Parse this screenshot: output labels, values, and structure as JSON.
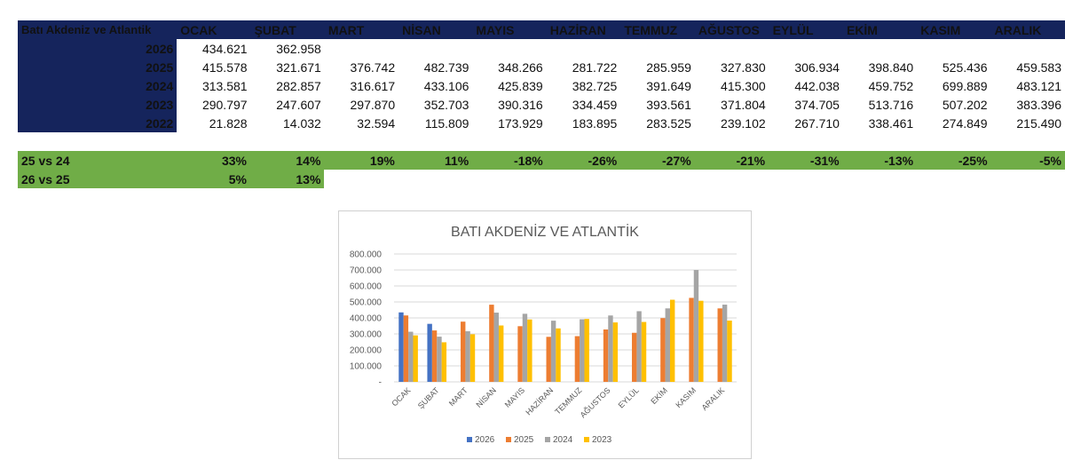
{
  "table": {
    "header_label": "Batı Akdeniz ve Atlantik",
    "months": [
      "OCAK",
      "ŞUBAT",
      "MART",
      "NİSAN",
      "MAYIS",
      "HAZİRAN",
      "TEMMUZ",
      "AĞUSTOS",
      "EYLÜL",
      "EKİM",
      "KASIM",
      "ARALIK"
    ],
    "rows": [
      {
        "year": "2026",
        "values": [
          "434.621",
          "362.958",
          "",
          "",
          "",
          "",
          "",
          "",
          "",
          "",
          "",
          ""
        ]
      },
      {
        "year": "2025",
        "values": [
          "415.578",
          "321.671",
          "376.742",
          "482.739",
          "348.266",
          "281.722",
          "285.959",
          "327.830",
          "306.934",
          "398.840",
          "525.436",
          "459.583"
        ]
      },
      {
        "year": "2024",
        "values": [
          "313.581",
          "282.857",
          "316.617",
          "433.106",
          "425.839",
          "382.725",
          "391.649",
          "415.300",
          "442.038",
          "459.752",
          "699.889",
          "483.121"
        ]
      },
      {
        "year": "2023",
        "values": [
          "290.797",
          "247.607",
          "297.870",
          "352.703",
          "390.316",
          "334.459",
          "393.561",
          "371.804",
          "374.705",
          "513.716",
          "507.202",
          "383.396"
        ]
      },
      {
        "year": "2022",
        "values": [
          "21.828",
          "14.032",
          "32.594",
          "115.809",
          "173.929",
          "183.895",
          "283.525",
          "239.102",
          "267.710",
          "338.461",
          "274.849",
          "215.490"
        ]
      }
    ]
  },
  "comparisons": [
    {
      "label": "25 vs 24",
      "values": [
        "33%",
        "14%",
        "19%",
        "11%",
        "-18%",
        "-26%",
        "-27%",
        "-21%",
        "-31%",
        "-13%",
        "-25%",
        "-5%"
      ]
    },
    {
      "label": "26 vs 25",
      "values": [
        "5%",
        "13%"
      ]
    }
  ],
  "chart_data": {
    "type": "bar",
    "title": "BATI AKDENİZ VE ATLANTİK",
    "categories": [
      "OCAK",
      "ŞUBAT",
      "MART",
      "NİSAN",
      "MAYIS",
      "HAZİRAN",
      "TEMMUZ",
      "AĞUSTOS",
      "EYLÜL",
      "EKİM",
      "KASIM",
      "ARALIK"
    ],
    "series": [
      {
        "name": "2026",
        "color": "#4472c4",
        "values": [
          434621,
          362958,
          null,
          null,
          null,
          null,
          null,
          null,
          null,
          null,
          null,
          null
        ]
      },
      {
        "name": "2025",
        "color": "#ed7d31",
        "values": [
          415578,
          321671,
          376742,
          482739,
          348266,
          281722,
          285959,
          327830,
          306934,
          398840,
          525436,
          459583
        ]
      },
      {
        "name": "2024",
        "color": "#a5a5a5",
        "values": [
          313581,
          282857,
          316617,
          433106,
          425839,
          382725,
          391649,
          415300,
          442038,
          459752,
          699889,
          483121
        ]
      },
      {
        "name": "2023",
        "color": "#ffc000",
        "values": [
          290797,
          247607,
          297870,
          352703,
          390316,
          334459,
          393561,
          371804,
          374705,
          513716,
          507202,
          383396
        ]
      }
    ],
    "ylim": [
      0,
      800000
    ],
    "y_ticks": [
      0,
      100000,
      200000,
      300000,
      400000,
      500000,
      600000,
      700000,
      800000
    ],
    "y_tick_labels": [
      "-",
      "100.000",
      "200.000",
      "300.000",
      "400.000",
      "500.000",
      "600.000",
      "700.000",
      "800.000"
    ],
    "grid": true,
    "legend_position": "bottom"
  }
}
